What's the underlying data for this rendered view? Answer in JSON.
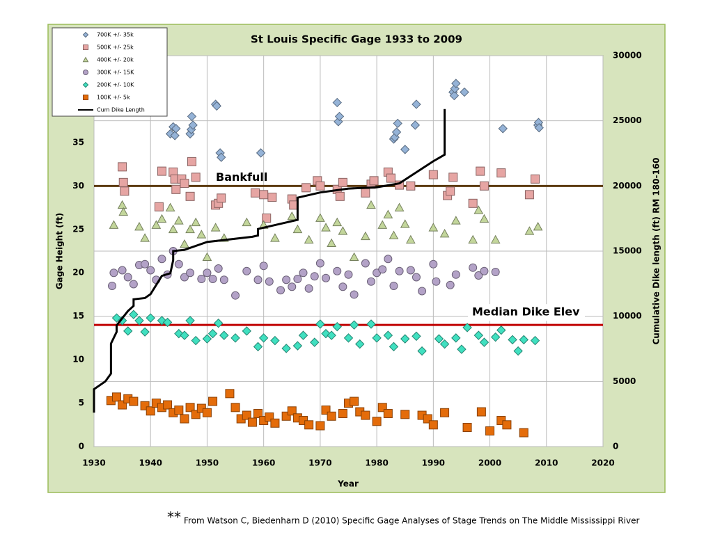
{
  "chart_data": {
    "type": "scatter",
    "title": "St Louis Specific Gage 1933 to 2009",
    "x_label": "Year",
    "y_label": "Gage Height (ft)",
    "y2_label": "Cumulative Dike length (ft) RM 180-160",
    "xlim": [
      1930,
      2020
    ],
    "xticks": [
      1930,
      1940,
      1950,
      1960,
      1970,
      1980,
      1990,
      2000,
      2010,
      2020
    ],
    "ylim": [
      0,
      45
    ],
    "yticks": [
      0,
      5,
      10,
      15,
      20,
      25,
      30,
      35
    ],
    "y2lim": [
      0,
      30000
    ],
    "y2ticks": [
      0,
      5000,
      10000,
      15000,
      20000,
      25000,
      30000
    ],
    "grid": true,
    "legend": "upper left",
    "reference_lines": [
      {
        "label": "Bankfull",
        "value": 30,
        "color": "#5c3a0f"
      },
      {
        "label": "Median Dike Elev",
        "value": 14,
        "color": "#c00000"
      }
    ],
    "footnote_marker": "**",
    "footnote": "From Watson C, Biedenharn D (2010) Specific Gage Analyses of Stage Trends on The Middle Mississippi River",
    "series": [
      {
        "name": "700K +/- 35k",
        "color": "#95b3d7",
        "marker": "diamond",
        "x": [
          1943.5,
          1944,
          1944.3,
          1944.5,
          1947,
          1947.2,
          1947.5,
          1947.3,
          1951.5,
          1951.7,
          1952.3,
          1952.5,
          1959.5,
          1973,
          1973.2,
          1973.4,
          1983,
          1983.2,
          1983.5,
          1983.7,
          1985,
          1986.8,
          1987,
          1993.5,
          1993.7,
          1993.8,
          1994,
          1995.5,
          2002.3,
          2008.5,
          2008.6,
          2008.7
        ],
        "values": [
          36,
          36.8,
          35.8,
          36.6,
          36,
          36.5,
          37,
          38,
          39.4,
          39.2,
          33.8,
          33.3,
          33.8,
          39.6,
          37.4,
          38,
          35.4,
          35.6,
          36.2,
          37.2,
          34.2,
          37,
          39.4,
          40.8,
          40.4,
          41.2,
          41.8,
          40.8,
          36.6,
          37,
          37.3,
          36.7
        ]
      },
      {
        "name": "500K +/- 25k",
        "color": "#e6a5a3",
        "marker": "square",
        "x": [
          1935,
          1935.2,
          1935.4,
          1941.5,
          1942,
          1944,
          1944.3,
          1944.5,
          1945.5,
          1946,
          1947,
          1947.3,
          1948,
          1951.5,
          1952,
          1952.5,
          1958.5,
          1960,
          1960.5,
          1961.5,
          1965,
          1965.3,
          1967.5,
          1969.5,
          1970,
          1973,
          1973.5,
          1974,
          1978,
          1979,
          1979.5,
          1982,
          1982.5,
          1984,
          1986,
          1990,
          1992.5,
          1993,
          1993.5,
          1997,
          1998.3,
          1999,
          2002,
          2007,
          2008
        ],
        "values": [
          32.2,
          30.4,
          29.4,
          27.6,
          31.7,
          31.6,
          30.8,
          29.6,
          30.8,
          30.3,
          28.8,
          32.8,
          31,
          27.8,
          28,
          28.6,
          29.2,
          29,
          26.3,
          28.7,
          28.5,
          27.8,
          29.8,
          30.6,
          30,
          29.6,
          28.8,
          30.4,
          29.2,
          30.2,
          30.6,
          31.6,
          30.9,
          30.1,
          30,
          31.3,
          28.9,
          29.4,
          31,
          28,
          31.7,
          30,
          31.5,
          29,
          30.8
        ]
      },
      {
        "name": "400K +/- 20k",
        "color": "#c3d69b",
        "marker": "triangle",
        "x": [
          1933.5,
          1935,
          1935.2,
          1938,
          1939,
          1941,
          1942,
          1943.5,
          1944,
          1945,
          1946,
          1947,
          1948,
          1949,
          1950,
          1951.5,
          1953,
          1957,
          1960,
          1962,
          1965,
          1966,
          1968,
          1970,
          1971,
          1972,
          1973,
          1974,
          1976,
          1978,
          1979,
          1981,
          1982,
          1983,
          1984,
          1985,
          1986,
          1990,
          1992,
          1994,
          1997,
          1998,
          1999,
          2001,
          2007,
          2008.5
        ],
        "values": [
          25.5,
          27.8,
          27,
          25.3,
          24,
          25.5,
          26.2,
          27.5,
          25,
          26,
          23.3,
          25,
          25.8,
          24.4,
          21.8,
          25.2,
          24,
          25.8,
          25.5,
          24,
          26.5,
          25,
          23.8,
          26.3,
          25.2,
          23.4,
          25.8,
          24.8,
          21.8,
          24.2,
          27.8,
          25.5,
          26.7,
          24.3,
          27.5,
          25.6,
          23.8,
          25.2,
          24.5,
          26,
          23.8,
          27.2,
          26.2,
          23.8,
          24.8,
          25.3
        ]
      },
      {
        "name": "300K +/- 15K",
        "color": "#b3a2c7",
        "marker": "circle",
        "x": [
          1933.5,
          1933.2,
          1935,
          1936,
          1937,
          1938,
          1939,
          1940,
          1941,
          1942,
          1943,
          1944,
          1945,
          1946,
          1947,
          1949,
          1950,
          1951,
          1952,
          1953,
          1955,
          1957,
          1959,
          1960,
          1961,
          1963,
          1964,
          1965,
          1966,
          1967,
          1968,
          1969,
          1970,
          1971,
          1973,
          1974,
          1975,
          1976,
          1978,
          1979,
          1980,
          1981,
          1982,
          1983,
          1984,
          1986,
          1987,
          1988,
          1990,
          1990.5,
          1993,
          1994,
          1997,
          1998,
          1999,
          2001
        ],
        "values": [
          20,
          18.5,
          20.3,
          19.5,
          18.7,
          20.9,
          21,
          20.3,
          19.2,
          21.6,
          19.8,
          22.5,
          21,
          19.5,
          20,
          19.3,
          20,
          19.3,
          20.5,
          19.2,
          17.4,
          20.2,
          19.2,
          20.8,
          19,
          18,
          19.2,
          18.4,
          19.3,
          20,
          18.2,
          19.6,
          21.1,
          19.4,
          20.2,
          18.4,
          19.8,
          17.5,
          21.1,
          19,
          20,
          20.4,
          21.6,
          18.5,
          20.2,
          20.3,
          19.5,
          17.9,
          21,
          19,
          18.6,
          19.8,
          20.6,
          19.7,
          20.2,
          20.1
        ]
      },
      {
        "name": "200K +/- 10K",
        "color": "#40e0c0",
        "marker": "diamond",
        "x": [
          1934,
          1935,
          1936,
          1937,
          1938,
          1939,
          1940,
          1942,
          1943,
          1945,
          1946,
          1947,
          1948,
          1950,
          1951,
          1952,
          1953,
          1955,
          1957,
          1959,
          1960,
          1962,
          1964,
          1966,
          1967,
          1969,
          1970,
          1971,
          1972,
          1973,
          1975,
          1976,
          1977,
          1979,
          1980,
          1982,
          1983,
          1985,
          1987,
          1988,
          1991,
          1992,
          1994,
          1995,
          1996,
          1998,
          1999,
          2001,
          2002,
          2004,
          2005,
          2006,
          2008
        ],
        "values": [
          14.8,
          14.5,
          13.3,
          15.2,
          14.5,
          13.2,
          14.8,
          14.5,
          14.3,
          13,
          12.8,
          14.5,
          12.2,
          12.4,
          13,
          14.2,
          12.8,
          12.5,
          13.3,
          11.5,
          12.5,
          12.2,
          11.3,
          11.6,
          12.8,
          12,
          14.1,
          13,
          12.8,
          13.8,
          12.5,
          14,
          11.8,
          14.1,
          12.5,
          12.8,
          11.5,
          12.4,
          12.7,
          11,
          12.4,
          11.8,
          12.5,
          11.2,
          13.7,
          12.8,
          12,
          12.6,
          13.4,
          12.3,
          11,
          12.3,
          12.2
        ]
      },
      {
        "name": "100K +/- 5k",
        "color": "#e46c0a",
        "marker": "square",
        "x": [
          1933,
          1934,
          1935,
          1936,
          1937,
          1939,
          1940,
          1941,
          1942,
          1943,
          1944,
          1945,
          1946,
          1947,
          1948,
          1949,
          1950,
          1951,
          1954,
          1955,
          1956,
          1957,
          1958,
          1959,
          1960,
          1961,
          1962,
          1964,
          1965,
          1966,
          1967,
          1968,
          1970,
          1971,
          1972,
          1974,
          1975,
          1976,
          1977,
          1978,
          1980,
          1981,
          1982,
          1985,
          1988,
          1989,
          1990,
          1992,
          1996,
          1998.5,
          2000,
          2002,
          2003,
          2006
        ],
        "values": [
          5.3,
          5.7,
          4.8,
          5.5,
          5.2,
          4.7,
          4.1,
          5,
          4.5,
          4.8,
          3.9,
          4.2,
          3.2,
          4.5,
          3.7,
          4.4,
          3.9,
          5.2,
          6.1,
          4.5,
          3.2,
          3.6,
          2.8,
          3.8,
          3,
          3.4,
          2.7,
          3.5,
          4.1,
          3.3,
          3,
          2.5,
          2.4,
          4.2,
          3.5,
          3.8,
          5,
          5.2,
          4,
          3.6,
          2.9,
          4.5,
          3.8,
          3.7,
          3.6,
          3.2,
          2.5,
          3.9,
          2.2,
          4,
          1.8,
          3,
          2.5,
          1.6
        ]
      },
      {
        "name": "Cum Dike Length",
        "color": "#000000",
        "marker": "line",
        "axis": "y2",
        "x": [
          1930,
          1930,
          1932,
          1932.5,
          1933,
          1933,
          1934,
          1934,
          1936,
          1937,
          1937,
          1939,
          1940,
          1942,
          1943.5,
          1944,
          1944,
          1946,
          1950,
          1958,
          1959,
          1959,
          1966,
          1966,
          1966,
          1970,
          1975,
          1980,
          1984,
          1990,
          1992,
          1992
        ],
        "values": [
          2600,
          4400,
          5000,
          5300,
          5600,
          7900,
          8800,
          9300,
          10400,
          10800,
          11300,
          11400,
          11700,
          13100,
          13300,
          14300,
          15000,
          15100,
          15700,
          16100,
          16200,
          16700,
          17400,
          18100,
          19100,
          19500,
          19800,
          19900,
          20200,
          21900,
          22400,
          25900
        ]
      }
    ]
  }
}
